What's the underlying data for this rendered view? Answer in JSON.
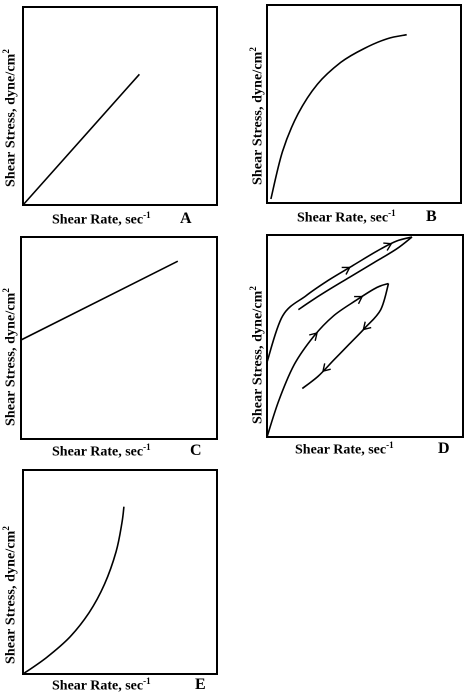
{
  "chart_data": [
    {
      "type": "line",
      "panel_letter": "A",
      "xlabel": "Shear Rate, sec",
      "xlabel_sup": "-1",
      "ylabel": "Shear Stress, dyne/cm",
      "ylabel_sup": "2",
      "xlim": [
        0,
        1
      ],
      "ylim": [
        0,
        1
      ],
      "series": [
        {
          "x": [
            0,
            0.6
          ],
          "y": [
            0,
            0.66
          ]
        }
      ]
    },
    {
      "type": "line",
      "panel_letter": "B",
      "xlabel": "Shear Rate, sec",
      "xlabel_sup": "-1",
      "ylabel": "Shear Stress, dyne/cm",
      "ylabel_sup": "2",
      "xlim": [
        0,
        1
      ],
      "ylim": [
        0,
        1
      ],
      "series": [
        {
          "x": [
            0.02,
            0.08,
            0.16,
            0.26,
            0.38,
            0.5,
            0.62,
            0.72
          ],
          "y": [
            0.02,
            0.26,
            0.45,
            0.6,
            0.71,
            0.78,
            0.83,
            0.85
          ]
        }
      ]
    },
    {
      "type": "line",
      "panel_letter": "C",
      "xlabel": "Shear Rate, sec",
      "xlabel_sup": "-1",
      "ylabel": "Shear Stress, dyne/cm",
      "ylabel_sup": "2",
      "xlim": [
        0,
        1
      ],
      "ylim": [
        0,
        1
      ],
      "series": [
        {
          "x": [
            0,
            0.8
          ],
          "y": [
            0.49,
            0.88
          ]
        }
      ]
    },
    {
      "type": "line",
      "panel_letter": "D",
      "xlabel": "Shear Rate, sec",
      "xlabel_sup": "-1",
      "ylabel": "Shear Stress, dyne/cm",
      "ylabel_sup": "2",
      "xlim": [
        0,
        1
      ],
      "ylim": [
        0,
        1
      ],
      "series": [
        {
          "x": [
            0,
            0.08,
            0.2,
            0.32,
            0.44,
            0.56,
            0.66,
            0.74
          ],
          "y": [
            0.37,
            0.6,
            0.7,
            0.78,
            0.85,
            0.92,
            0.97,
            0.99
          ]
        },
        {
          "x": [
            0.74,
            0.66,
            0.54,
            0.42,
            0.3,
            0.22,
            0.16
          ],
          "y": [
            0.99,
            0.93,
            0.86,
            0.79,
            0.72,
            0.67,
            0.63
          ]
        },
        {
          "x": [
            0,
            0.06,
            0.14,
            0.24,
            0.34,
            0.46,
            0.56,
            0.62
          ],
          "y": [
            0,
            0.18,
            0.36,
            0.5,
            0.6,
            0.68,
            0.74,
            0.76
          ]
        },
        {
          "x": [
            0.62,
            0.58,
            0.5,
            0.42,
            0.34,
            0.26,
            0.18
          ],
          "y": [
            0.76,
            0.63,
            0.54,
            0.46,
            0.38,
            0.3,
            0.24
          ]
        }
      ]
    },
    {
      "type": "line",
      "panel_letter": "E",
      "xlabel": "Shear Rate, sec",
      "xlabel_sup": "-1",
      "ylabel": "Shear Stress, dyne/cm",
      "ylabel_sup": "2",
      "xlim": [
        0,
        1
      ],
      "ylim": [
        0,
        1
      ],
      "series": [
        {
          "x": [
            0,
            0.12,
            0.24,
            0.34,
            0.42,
            0.48,
            0.51,
            0.52
          ],
          "y": [
            0,
            0.08,
            0.18,
            0.3,
            0.44,
            0.6,
            0.74,
            0.82
          ]
        }
      ]
    }
  ]
}
